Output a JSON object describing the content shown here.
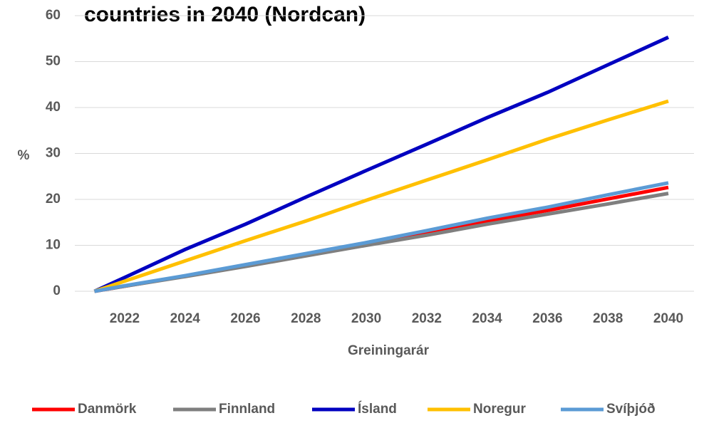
{
  "chart_data": {
    "type": "line",
    "title": "countries in 2040 (Nordcan)",
    "y_label": "%",
    "x_label": "Greiningarár",
    "x": [
      2021,
      2022,
      2024,
      2026,
      2028,
      2030,
      2032,
      2034,
      2036,
      2038,
      2040
    ],
    "series": [
      {
        "name": "Danmörk",
        "color": "#ff0000",
        "values": [
          0,
          1.1,
          3.3,
          5.6,
          8,
          10.3,
          12.8,
          15.3,
          17.6,
          20.1,
          22.6
        ]
      },
      {
        "name": "Finnland",
        "color": "#7f7f7f",
        "values": [
          0,
          1.1,
          3.2,
          5.4,
          7.7,
          10,
          12.2,
          14.6,
          16.8,
          19,
          21.3
        ]
      },
      {
        "name": "Ísland",
        "color": "#0000c0",
        "values": [
          0,
          3,
          9.1,
          14.6,
          20.5,
          26.3,
          32,
          37.8,
          43.3,
          49.3,
          55.3
        ]
      },
      {
        "name": "Noregur",
        "color": "#ffc000",
        "values": [
          0,
          2.2,
          6.6,
          11,
          15.3,
          19.8,
          24.2,
          28.6,
          33.1,
          37.3,
          41.4
        ]
      },
      {
        "name": "Svíþjóð",
        "color": "#5b9bd5",
        "values": [
          0,
          1.2,
          3.4,
          5.8,
          8.2,
          10.6,
          13.2,
          15.9,
          18.3,
          21,
          23.6
        ]
      }
    ],
    "xlim": [
      2020.35,
      2040.85
    ],
    "xticks": [
      2022,
      2024,
      2026,
      2028,
      2030,
      2032,
      2034,
      2036,
      2038,
      2040
    ],
    "ylim": [
      0,
      60
    ],
    "yticks": [
      0,
      10,
      20,
      30,
      40,
      50,
      60
    ],
    "grid": true,
    "legend": "bottom"
  }
}
